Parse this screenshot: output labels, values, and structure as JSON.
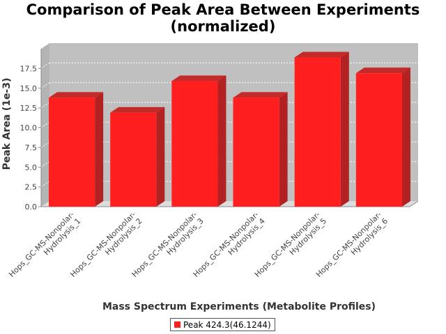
{
  "chart_data": {
    "type": "bar",
    "title_lines": [
      "Comparison of Peak Area Between Experiments",
      "(normalized)"
    ],
    "xlabel": "Mass Spectrum Experiments (Metabolite Profiles)",
    "ylabel": "Peak Area (1e-3)",
    "categories": [
      [
        "Hops_GC-MS-Nonpolar-",
        "Hydrolysis_1"
      ],
      [
        "Hops_GC-MS-Nonpolar-",
        "Hydrolysis_2"
      ],
      [
        "Hops_GC-MS-Nonpolar-",
        "Hydrolysis_3"
      ],
      [
        "Hops_GC-MS-Nonpolar-",
        "Hydrolysis_4"
      ],
      [
        "Hops_GC-MS-Nonpolar-",
        "Hydrolysis_5"
      ],
      [
        "Hops_GC-MS-Nonpolar-",
        "Hydrolysis_6"
      ]
    ],
    "series": [
      {
        "name": "Peak 424.3(46.1244)",
        "values": [
          13.8,
          11.9,
          15.9,
          13.8,
          18.9,
          16.9
        ]
      }
    ],
    "ylim": [
      0,
      20
    ],
    "yticks": [
      "0.0",
      "2.5",
      "5.0",
      "7.5",
      "10.0",
      "12.5",
      "15.0",
      "17.5"
    ],
    "grid": true,
    "legend_position": "bottom",
    "colors": {
      "bar_front": "#ff1f1f",
      "bar_side": "#b32222",
      "bar_top": "#c42a2a",
      "plot_back": "#c0c0c0",
      "plot_floor": "#dcdcdc",
      "grid": "#ffffff"
    }
  }
}
